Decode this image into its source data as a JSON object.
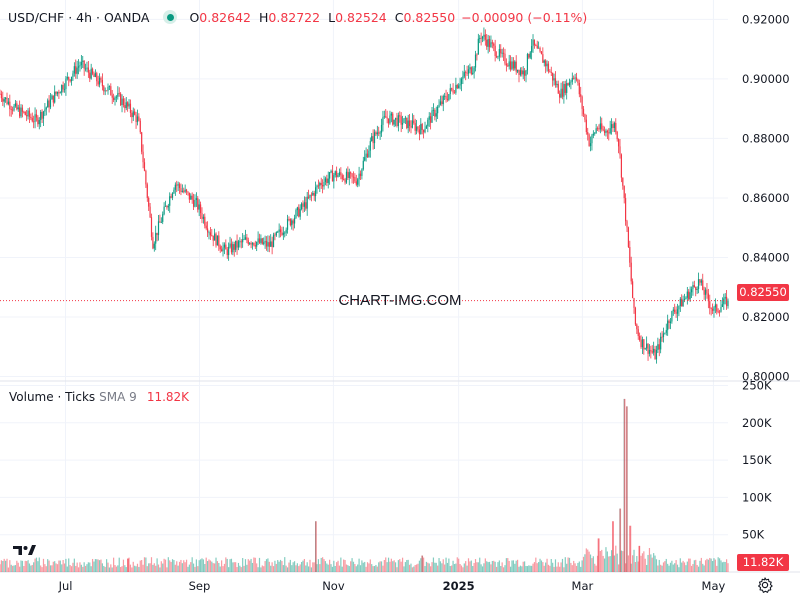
{
  "header": {
    "symbol": "USD/CHF · 4h · OANDA",
    "open_label": "O",
    "open": "0.82642",
    "high_label": "H",
    "high": "0.82722",
    "low_label": "L",
    "low": "0.82524",
    "close_label": "C",
    "close": "0.82550",
    "change": "−0.00090 (−0.11%)"
  },
  "volume_header": {
    "label": "Volume · Ticks",
    "sma": "SMA 9",
    "value": "11.82K"
  },
  "watermark": "CHART-IMG.COM",
  "last_price_tag": "0.82550",
  "last_volume_tag": "11.82K",
  "icons": {
    "logo": "tradingview-logo-icon",
    "settings": "gear-icon"
  },
  "colors": {
    "up": "#089981",
    "down": "#f23645",
    "grid": "#f0f3fa",
    "text": "#131722"
  },
  "chart_data": [
    {
      "type": "candlestick",
      "title": "USD/CHF · 4h · OANDA",
      "x_ticks": [
        "Jul",
        "Sep",
        "Nov",
        "2025",
        "Mar",
        "May"
      ],
      "y_ticks": [
        "0.92000",
        "0.90000",
        "0.88000",
        "0.86000",
        "0.84000",
        "0.82000",
        "0.80000"
      ],
      "ylim": [
        0.7985,
        0.9265
      ],
      "last_price": 0.8255,
      "grid": true,
      "price_path": {
        "t": [
          0,
          0.02,
          0.05,
          0.08,
          0.11,
          0.14,
          0.17,
          0.19,
          0.21,
          0.24,
          0.27,
          0.29,
          0.31,
          0.34,
          0.37,
          0.39,
          0.42,
          0.44,
          0.46,
          0.49,
          0.51,
          0.53,
          0.56,
          0.58,
          0.61,
          0.63,
          0.65,
          0.66,
          0.69,
          0.72,
          0.73,
          0.75,
          0.77,
          0.79,
          0.81,
          0.82,
          0.83,
          0.845,
          0.85,
          0.86,
          0.872,
          0.88,
          0.9,
          0.92,
          0.96,
          0.98,
          1.0
        ],
        "close": [
          0.895,
          0.89,
          0.886,
          0.896,
          0.905,
          0.898,
          0.892,
          0.886,
          0.845,
          0.865,
          0.858,
          0.848,
          0.842,
          0.846,
          0.844,
          0.85,
          0.858,
          0.865,
          0.868,
          0.866,
          0.879,
          0.887,
          0.885,
          0.883,
          0.893,
          0.899,
          0.904,
          0.915,
          0.907,
          0.902,
          0.912,
          0.905,
          0.895,
          0.902,
          0.878,
          0.884,
          0.882,
          0.885,
          0.878,
          0.852,
          0.818,
          0.812,
          0.807,
          0.82,
          0.832,
          0.822,
          0.8255
        ]
      }
    },
    {
      "type": "bar",
      "title": "Volume · Ticks",
      "y_ticks": [
        "250K",
        "200K",
        "150K",
        "100K",
        "50K"
      ],
      "ylim": [
        0,
        252000
      ],
      "last_value": 11820,
      "spikes": [
        {
          "t": 0.176,
          "value": 18000
        },
        {
          "t": 0.434,
          "value": 68000
        },
        {
          "t": 0.58,
          "value": 22000
        },
        {
          "t": 0.822,
          "value": 45000
        },
        {
          "t": 0.842,
          "value": 68000
        },
        {
          "t": 0.852,
          "value": 85000
        },
        {
          "t": 0.858,
          "value": 232000
        },
        {
          "t": 0.861,
          "value": 222000
        },
        {
          "t": 0.866,
          "value": 62000
        },
        {
          "t": 0.878,
          "value": 35000
        }
      ]
    }
  ]
}
